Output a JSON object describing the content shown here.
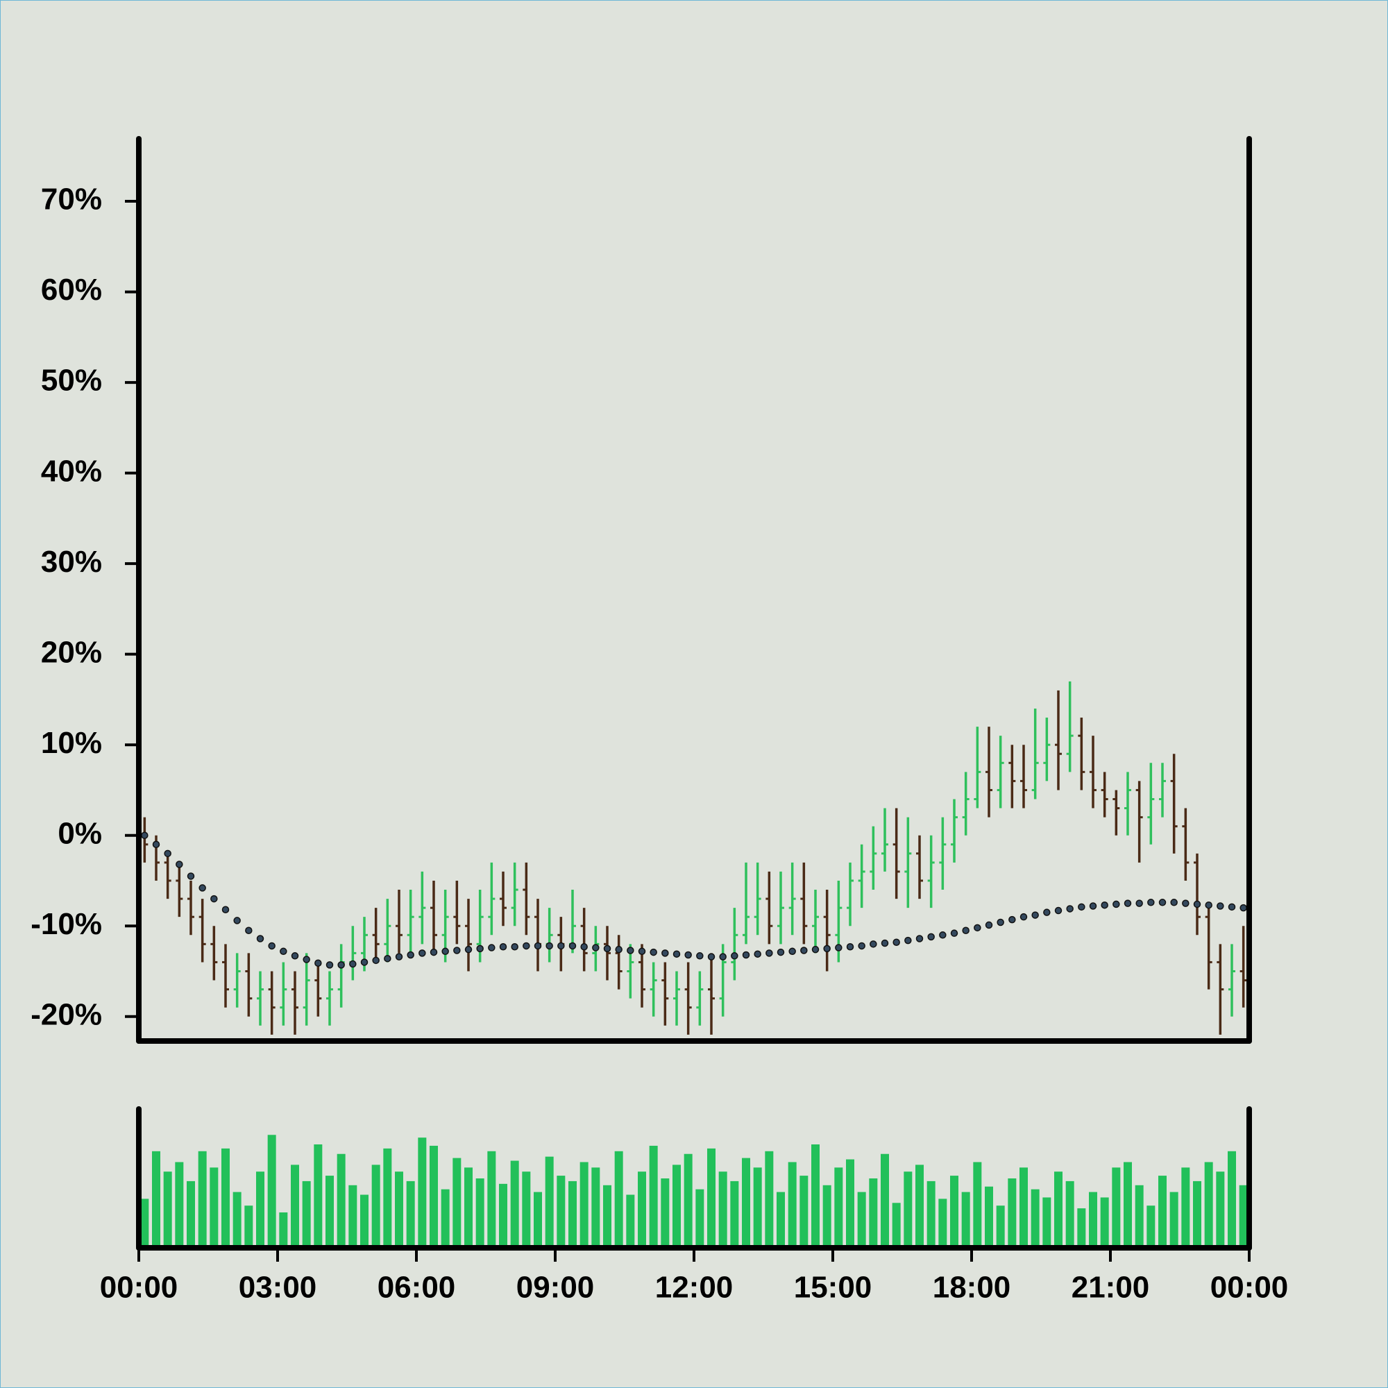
{
  "chart_data": [
    {
      "type": "ohlc",
      "x": [
        0.125,
        0.375,
        0.625,
        0.875,
        1.125,
        1.375,
        1.625,
        1.875,
        2.125,
        2.375,
        2.625,
        2.875,
        3.125,
        3.375,
        3.625,
        3.875,
        4.125,
        4.375,
        4.625,
        4.875,
        5.125,
        5.375,
        5.625,
        5.875,
        6.125,
        6.375,
        6.625,
        6.875,
        7.125,
        7.375,
        7.625,
        7.875,
        8.125,
        8.375,
        8.625,
        8.875,
        9.125,
        9.375,
        9.625,
        9.875,
        10.125,
        10.375,
        10.625,
        10.875,
        11.125,
        11.375,
        11.625,
        11.875,
        12.125,
        12.375,
        12.625,
        12.875,
        13.125,
        13.375,
        13.625,
        13.875,
        14.125,
        14.375,
        14.625,
        14.875,
        15.125,
        15.375,
        15.625,
        15.875,
        16.125,
        16.375,
        16.625,
        16.875,
        17.125,
        17.375,
        17.625,
        17.875,
        18.125,
        18.375,
        18.625,
        18.875,
        19.125,
        19.375,
        19.625,
        19.875,
        20.125,
        20.375,
        20.625,
        20.875,
        21.125,
        21.375,
        21.625,
        21.875,
        22.125,
        22.375,
        22.625,
        22.875,
        23.125,
        23.375,
        23.625,
        23.875
      ],
      "open": [
        0,
        -1,
        -3,
        -5,
        -7,
        -9,
        -12,
        -14,
        -17,
        -15,
        -18,
        -17,
        -19,
        -17,
        -19,
        -16,
        -18,
        -17,
        -14,
        -13,
        -11,
        -12,
        -10,
        -11,
        -9,
        -8,
        -11,
        -9,
        -10,
        -12,
        -9,
        -7,
        -8,
        -6,
        -9,
        -12,
        -11,
        -12,
        -10,
        -13,
        -12,
        -13,
        -15,
        -14,
        -17,
        -16,
        -18,
        -17,
        -19,
        -17,
        -18,
        -14,
        -11,
        -9,
        -7,
        -10,
        -8,
        -7,
        -10,
        -9,
        -11,
        -8,
        -5,
        -4,
        -2,
        -1,
        -4,
        -2,
        -5,
        -3,
        -1,
        2,
        4,
        7,
        5,
        8,
        6,
        5,
        8,
        10,
        9,
        11,
        7,
        5,
        4,
        3,
        5,
        2,
        4,
        6,
        1,
        -3,
        -9,
        -14,
        -17,
        -15
      ],
      "high": [
        2,
        0,
        -2,
        -3,
        -5,
        -7,
        -10,
        -12,
        -13,
        -13,
        -15,
        -15,
        -14,
        -15,
        -13,
        -14,
        -15,
        -12,
        -10,
        -9,
        -8,
        -7,
        -6,
        -6,
        -4,
        -5,
        -6,
        -5,
        -7,
        -6,
        -3,
        -4,
        -3,
        -3,
        -7,
        -8,
        -9,
        -6,
        -8,
        -10,
        -10,
        -11,
        -12,
        -12,
        -14,
        -14,
        -15,
        -14,
        -15,
        -13,
        -12,
        -8,
        -3,
        -3,
        -4,
        -4,
        -3,
        -3,
        -6,
        -6,
        -5,
        -3,
        -1,
        1,
        3,
        3,
        2,
        0,
        0,
        2,
        4,
        7,
        12,
        12,
        11,
        10,
        10,
        14,
        13,
        16,
        17,
        13,
        11,
        7,
        5,
        7,
        6,
        8,
        8,
        9,
        3,
        -2,
        -8,
        -12,
        -12,
        -10
      ],
      "low": [
        -3,
        -5,
        -7,
        -9,
        -11,
        -14,
        -16,
        -19,
        -19,
        -20,
        -21,
        -22,
        -21,
        -22,
        -21,
        -20,
        -21,
        -19,
        -16,
        -15,
        -14,
        -14,
        -13,
        -13,
        -12,
        -13,
        -14,
        -12,
        -15,
        -14,
        -11,
        -10,
        -10,
        -11,
        -15,
        -14,
        -15,
        -13,
        -15,
        -15,
        -16,
        -17,
        -18,
        -19,
        -20,
        -21,
        -21,
        -22,
        -21,
        -22,
        -20,
        -16,
        -12,
        -11,
        -12,
        -12,
        -11,
        -12,
        -13,
        -15,
        -14,
        -10,
        -8,
        -6,
        -4,
        -7,
        -8,
        -7,
        -8,
        -6,
        -3,
        0,
        3,
        2,
        3,
        3,
        3,
        4,
        6,
        5,
        7,
        5,
        3,
        2,
        0,
        0,
        -3,
        -1,
        2,
        -2,
        -5,
        -11,
        -17,
        -22,
        -20,
        -19
      ],
      "close": [
        -1,
        -3,
        -5,
        -7,
        -9,
        -12,
        -14,
        -17,
        -15,
        -18,
        -17,
        -19,
        -17,
        -19,
        -16,
        -18,
        -17,
        -14,
        -13,
        -11,
        -12,
        -10,
        -11,
        -9,
        -8,
        -11,
        -9,
        -10,
        -12,
        -9,
        -7,
        -8,
        -6,
        -9,
        -12,
        -11,
        -12,
        -10,
        -13,
        -12,
        -13,
        -15,
        -14,
        -17,
        -16,
        -18,
        -17,
        -19,
        -17,
        -18,
        -14,
        -11,
        -9,
        -7,
        -10,
        -8,
        -7,
        -10,
        -9,
        -11,
        -8,
        -5,
        -4,
        -2,
        -1,
        -4,
        -2,
        -5,
        -3,
        -1,
        2,
        4,
        7,
        5,
        8,
        6,
        5,
        8,
        10,
        9,
        11,
        7,
        5,
        4,
        3,
        5,
        2,
        4,
        6,
        1,
        -3,
        -9,
        -14,
        -17,
        -15,
        -16
      ],
      "moving_average": [
        0,
        -1,
        -2,
        -3.2,
        -4.5,
        -5.8,
        -7,
        -8.2,
        -9.4,
        -10.5,
        -11.4,
        -12.2,
        -12.8,
        -13.3,
        -13.7,
        -14.1,
        -14.3,
        -14.3,
        -14.2,
        -14,
        -13.8,
        -13.6,
        -13.4,
        -13.2,
        -13,
        -12.9,
        -12.8,
        -12.7,
        -12.6,
        -12.5,
        -12.4,
        -12.3,
        -12.3,
        -12.2,
        -12.2,
        -12.2,
        -12.2,
        -12.2,
        -12.3,
        -12.4,
        -12.5,
        -12.6,
        -12.7,
        -12.8,
        -12.9,
        -13,
        -13.1,
        -13.2,
        -13.3,
        -13.4,
        -13.4,
        -13.3,
        -13.2,
        -13.1,
        -13,
        -12.9,
        -12.8,
        -12.7,
        -12.6,
        -12.5,
        -12.4,
        -12.3,
        -12.2,
        -12,
        -11.9,
        -11.8,
        -11.6,
        -11.4,
        -11.2,
        -11,
        -10.8,
        -10.5,
        -10.2,
        -9.9,
        -9.6,
        -9.3,
        -9,
        -8.8,
        -8.5,
        -8.3,
        -8.1,
        -7.9,
        -7.8,
        -7.7,
        -7.6,
        -7.5,
        -7.5,
        -7.4,
        -7.4,
        -7.4,
        -7.5,
        -7.6,
        -7.7,
        -7.8,
        -7.9,
        -8
      ],
      "up_color": "#2fc05c",
      "down_color": "#4a2a16",
      "line_color": "#34495e",
      "xlim": [
        0,
        24
      ],
      "ylim": [
        -22.7,
        76.9
      ],
      "yticks": [
        {
          "value": -20,
          "label": "-20%"
        },
        {
          "value": -10,
          "label": "-10%"
        },
        {
          "value": 0,
          "label": "0%"
        },
        {
          "value": 10,
          "label": "10%"
        },
        {
          "value": 20,
          "label": "20%"
        },
        {
          "value": 30,
          "label": "30%"
        },
        {
          "value": 40,
          "label": "40%"
        },
        {
          "value": 50,
          "label": "50%"
        },
        {
          "value": 60,
          "label": "60%"
        },
        {
          "value": 70,
          "label": "70%"
        }
      ]
    },
    {
      "type": "bar",
      "values": [
        35,
        70,
        55,
        62,
        48,
        70,
        58,
        72,
        40,
        30,
        55,
        82,
        25,
        60,
        48,
        75,
        52,
        68,
        45,
        38,
        60,
        72,
        55,
        48,
        80,
        74,
        42,
        65,
        58,
        50,
        70,
        46,
        63,
        55,
        40,
        66,
        52,
        48,
        62,
        58,
        45,
        70,
        38,
        55,
        74,
        50,
        60,
        68,
        42,
        72,
        55,
        48,
        65,
        58,
        70,
        40,
        62,
        52,
        75,
        45,
        58,
        64,
        40,
        50,
        68,
        32,
        55,
        60,
        48,
        35,
        52,
        40,
        62,
        44,
        30,
        50,
        58,
        42,
        36,
        55,
        48,
        28,
        40,
        36,
        58,
        62,
        45,
        30,
        52,
        40,
        58,
        48,
        62,
        55,
        70,
        45
      ],
      "color": "#22c05a",
      "xlim": [
        0,
        24
      ],
      "ylim": [
        0,
        100
      ],
      "xticks": [
        {
          "value": 0,
          "label": "00:00"
        },
        {
          "value": 3,
          "label": "03:00"
        },
        {
          "value": 6,
          "label": "06:00"
        },
        {
          "value": 9,
          "label": "09:00"
        },
        {
          "value": 12,
          "label": "12:00"
        },
        {
          "value": 15,
          "label": "15:00"
        },
        {
          "value": 18,
          "label": "18:00"
        },
        {
          "value": 21,
          "label": "21:00"
        },
        {
          "value": 24,
          "label": "00:00"
        }
      ]
    }
  ]
}
